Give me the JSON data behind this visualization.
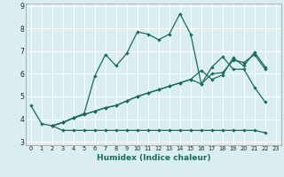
{
  "xlabel": "Humidex (Indice chaleur)",
  "ylabel": "",
  "background_color": "#daeef0",
  "grid_color": "#ffffff",
  "line_color": "#1a6b5a",
  "xlim": [
    -0.5,
    23.5
  ],
  "ylim": [
    2.85,
    9.1
  ],
  "xticks": [
    0,
    1,
    2,
    3,
    4,
    5,
    6,
    7,
    8,
    9,
    10,
    11,
    12,
    13,
    14,
    15,
    16,
    17,
    18,
    19,
    20,
    21,
    22,
    23
  ],
  "yticks": [
    3,
    4,
    5,
    6,
    7,
    8,
    9
  ],
  "line1_x": [
    0,
    1,
    2,
    3,
    4,
    5,
    6,
    7,
    8,
    9,
    10,
    11,
    12,
    13,
    14,
    15,
    16,
    17,
    18,
    19,
    20,
    21,
    22
  ],
  "line1_y": [
    4.6,
    3.8,
    3.7,
    3.85,
    4.05,
    4.25,
    5.9,
    6.85,
    6.35,
    6.9,
    7.85,
    7.75,
    7.5,
    7.75,
    8.65,
    7.75,
    5.55,
    6.3,
    6.75,
    6.2,
    6.2,
    5.4,
    4.75
  ],
  "line2_x": [
    2,
    3,
    4,
    5,
    6,
    7,
    8,
    9,
    10,
    11,
    12,
    13,
    14,
    15,
    16,
    17,
    18,
    19,
    20,
    21,
    22
  ],
  "line2_y": [
    3.7,
    3.5,
    3.5,
    3.5,
    3.5,
    3.5,
    3.5,
    3.5,
    3.5,
    3.5,
    3.5,
    3.5,
    3.5,
    3.5,
    3.5,
    3.5,
    3.5,
    3.5,
    3.5,
    3.5,
    3.4
  ],
  "line3_x": [
    2,
    3,
    4,
    5,
    6,
    7,
    8,
    9,
    10,
    11,
    12,
    13,
    14,
    15,
    16,
    17,
    18,
    19,
    20,
    21,
    22
  ],
  "line3_y": [
    3.7,
    3.85,
    4.05,
    4.2,
    4.35,
    4.5,
    4.6,
    4.8,
    5.0,
    5.15,
    5.3,
    5.45,
    5.6,
    5.75,
    5.55,
    6.0,
    6.05,
    6.6,
    6.5,
    6.85,
    6.2
  ],
  "line4_x": [
    2,
    3,
    4,
    5,
    6,
    7,
    8,
    9,
    10,
    11,
    12,
    13,
    14,
    15,
    16,
    17,
    18,
    19,
    20,
    21,
    22
  ],
  "line4_y": [
    3.7,
    3.85,
    4.05,
    4.2,
    4.35,
    4.5,
    4.6,
    4.8,
    5.0,
    5.15,
    5.3,
    5.45,
    5.6,
    5.75,
    6.15,
    5.75,
    5.95,
    6.7,
    6.35,
    6.95,
    6.3
  ]
}
